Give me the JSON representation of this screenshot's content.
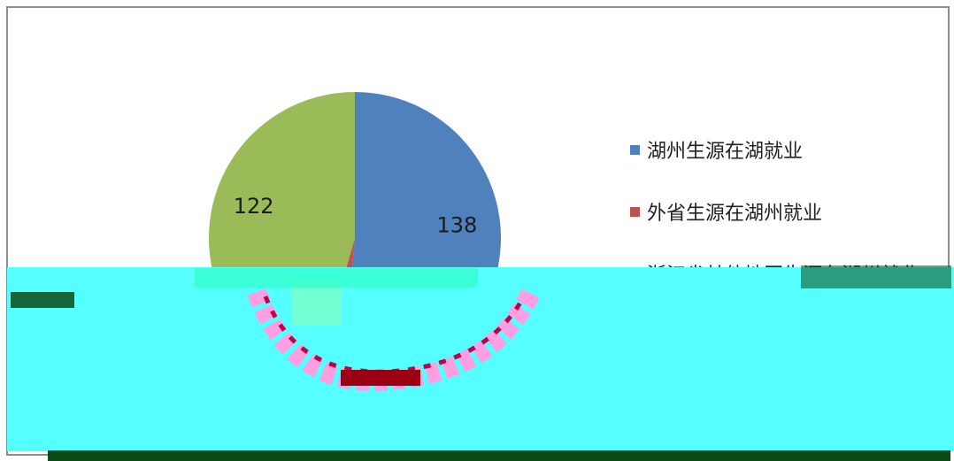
{
  "chart_data": {
    "type": "pie",
    "title": "",
    "slices": [
      {
        "label": "湖州生源在湖就业",
        "value": 138,
        "color": "#4f81bd",
        "shown_label": "138"
      },
      {
        "label": "外省生源在湖州就业",
        "value": 8,
        "color": "#c0504d",
        "shown_label": ""
      },
      {
        "label": "浙江省其他地区生源在湖州就业",
        "value": 122,
        "color": "#9bbb59",
        "shown_label": "122"
      }
    ],
    "legend_position": "right"
  },
  "legend": {
    "item0": "湖州生源在湖就业",
    "item1": "外省生源在湖州就业",
    "item2": "浙江省其他地区生源在湖州就业"
  },
  "colors": {
    "glitch_fill": "#55ffff",
    "glitch_bar": "#0b4a16"
  }
}
